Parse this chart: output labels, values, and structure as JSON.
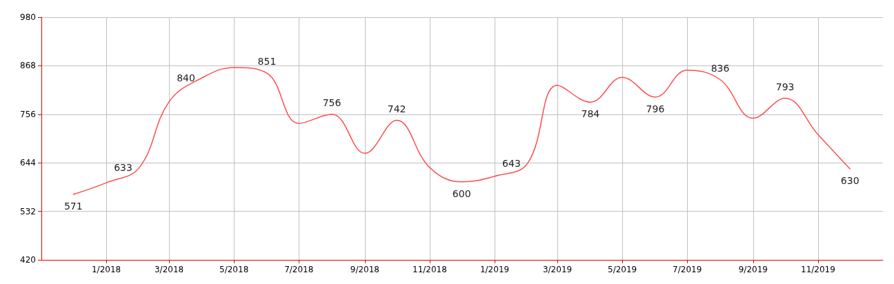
{
  "chart_data": {
    "type": "line",
    "x": [
      "2017-12",
      "2018-01",
      "2018-02",
      "2018-03",
      "2018-04",
      "2018-05",
      "2018-06",
      "2018-07",
      "2018-08",
      "2018-09",
      "2018-10",
      "2018-11",
      "2018-12",
      "2019-01",
      "2019-02",
      "2019-03",
      "2019-04",
      "2019-05",
      "2019-06",
      "2019-07",
      "2019-08",
      "2019-09",
      "2019-10",
      "2019-11",
      "2019-12"
    ],
    "series": [
      {
        "color": "#ff4d4d",
        "values": [
          571,
          598,
          633,
          785,
          840,
          864,
          851,
          735,
          756,
          666,
          742,
          633,
          600,
          613,
          643,
          823,
          784,
          841,
          796,
          858,
          836,
          747,
          793,
          709,
          630
        ],
        "value_labels": [
          "571",
          null,
          "633",
          null,
          "840",
          null,
          "851",
          null,
          "756",
          null,
          "742",
          null,
          "600",
          null,
          "643",
          null,
          "784",
          null,
          "796",
          null,
          "836",
          null,
          "793",
          null,
          "630"
        ]
      }
    ],
    "xlim": [
      "2017-11",
      "2020-01"
    ],
    "xticks": [
      {
        "value": "2018-01",
        "label": "1/2018"
      },
      {
        "value": "2018-03",
        "label": "3/2018"
      },
      {
        "value": "2018-05",
        "label": "5/2018"
      },
      {
        "value": "2018-07",
        "label": "7/2018"
      },
      {
        "value": "2018-09",
        "label": "9/2018"
      },
      {
        "value": "2018-11",
        "label": "11/2018"
      },
      {
        "value": "2019-01",
        "label": "1/2019"
      },
      {
        "value": "2019-03",
        "label": "3/2019"
      },
      {
        "value": "2019-05",
        "label": "5/2019"
      },
      {
        "value": "2019-07",
        "label": "7/2019"
      },
      {
        "value": "2019-09",
        "label": "9/2019"
      },
      {
        "value": "2019-11",
        "label": "11/2019"
      }
    ],
    "ylim": [
      420,
      980
    ],
    "yticks": [
      420,
      532,
      644,
      756,
      868,
      980
    ],
    "grid": true,
    "marker": "none",
    "line_style": "solid"
  }
}
